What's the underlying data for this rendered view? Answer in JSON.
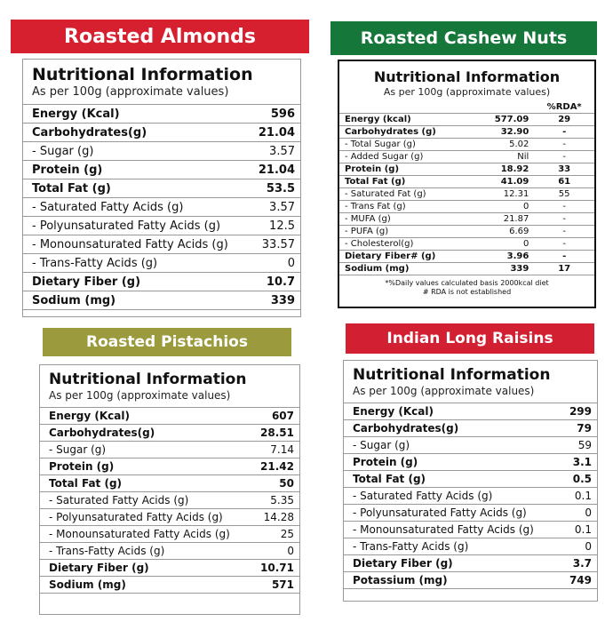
{
  "panels": {
    "almonds": {
      "banner": "Roasted  Almonds",
      "title": "Nutritional Information",
      "subtitle": "As per 100g  (approximate values)",
      "rows": [
        {
          "label": "Energy (Kcal)",
          "value": "596",
          "bold": true
        },
        {
          "label": "Carbohydrates(g)",
          "value": "21.04",
          "bold": true
        },
        {
          "label": "- Sugar (g)",
          "value": "3.57",
          "bold": false
        },
        {
          "label": "Protein (g)",
          "value": "21.04",
          "bold": true
        },
        {
          "label": "Total Fat (g)",
          "value": "53.5",
          "bold": true
        },
        {
          "label": "- Saturated Fatty Acids (g)",
          "value": "3.57",
          "bold": false
        },
        {
          "label": "- Polyunsaturated  Fatty Acids (g)",
          "value": "12.5",
          "bold": false
        },
        {
          "label": "- Monounsaturated Fatty Acids (g)",
          "value": "33.57",
          "bold": false
        },
        {
          "label": "- Trans-Fatty Acids (g)",
          "value": "0",
          "bold": false
        },
        {
          "label": "Dietary Fiber (g)",
          "value": "10.7",
          "bold": true
        },
        {
          "label": "Sodium  (mg)",
          "value": "339",
          "bold": true
        }
      ]
    },
    "cashew": {
      "banner": "Roasted Cashew Nuts",
      "title": "Nutritional Information",
      "subtitle": "As per 100g  (approximate values)",
      "rda_header": "%RDA*",
      "rows": [
        {
          "label": "Energy (kcal)",
          "value": "577.09",
          "rda": "29",
          "bold": true
        },
        {
          "label": "Carbohydrates (g)",
          "value": "32.90",
          "rda": "-",
          "bold": true
        },
        {
          "label": "- Total Sugar (g)",
          "value": "5.02",
          "rda": "-",
          "bold": false
        },
        {
          "label": "- Added Sugar (g)",
          "value": "Nil",
          "rda": "-",
          "bold": false
        },
        {
          "label": "Protein (g)",
          "value": "18.92",
          "rda": "33",
          "bold": true
        },
        {
          "label": "Total Fat (g)",
          "value": "41.09",
          "rda": "61",
          "bold": true
        },
        {
          "label": "- Saturated Fat (g)",
          "value": "12.31",
          "rda": "55",
          "bold": false
        },
        {
          "label": "- Trans Fat (g)",
          "value": "0",
          "rda": "-",
          "bold": false
        },
        {
          "label": "- MUFA (g)",
          "value": "21.87",
          "rda": "-",
          "bold": false
        },
        {
          "label": "- PUFA (g)",
          "value": "6.69",
          "rda": "-",
          "bold": false
        },
        {
          "label": "- Cholesterol(g)",
          "value": "0",
          "rda": "-",
          "bold": false
        },
        {
          "label": "Dietary Fiber# (g)",
          "value": "3.96",
          "rda": "-",
          "bold": true
        },
        {
          "label": "Sodium (mg)",
          "value": "339",
          "rda": "17",
          "bold": true
        }
      ],
      "note1": "*%Daily values calculated basis 2000kcal diet",
      "note2": "# RDA is not established"
    },
    "pistachios": {
      "banner": "Roasted Pistachios",
      "title": "Nutritional Information",
      "subtitle": "As per 100g  (approximate values)",
      "rows": [
        {
          "label": "Energy  (Kcal)",
          "value": "607",
          "bold": true
        },
        {
          "label": "Carbohydrates(g)",
          "value": "28.51",
          "bold": true
        },
        {
          "label": "- Sugar (g)",
          "value": "7.14",
          "bold": false
        },
        {
          "label": "Protein  (g)",
          "value": "21.42",
          "bold": true
        },
        {
          "label": "Total Fat  (g)",
          "value": "50",
          "bold": true
        },
        {
          "label": "- Saturated Fatty Acids  (g)",
          "value": "5.35",
          "bold": false
        },
        {
          "label": "- Polyunsaturated  Fatty Acids (g)",
          "value": "14.28",
          "bold": false
        },
        {
          "label": "- Monounsaturated Fatty Acids (g)",
          "value": "25",
          "bold": false
        },
        {
          "label": "- Trans-Fatty Acids  (g)",
          "value": "0",
          "bold": false
        },
        {
          "label": "Dietary Fiber  (g)",
          "value": "10.71",
          "bold": true
        },
        {
          "label": "Sodium  (mg)",
          "value": "571",
          "bold": true
        }
      ]
    },
    "raisins": {
      "banner": "Indian Long Raisins",
      "title": "Nutritional Information",
      "subtitle": "As per 100g  (approximate values)",
      "rows": [
        {
          "label": "Energy  (Kcal)",
          "value": "299",
          "bold": true
        },
        {
          "label": "Carbohydrates(g)",
          "value": "79",
          "bold": true
        },
        {
          "label": "- Sugar  (g)",
          "value": "59",
          "bold": false
        },
        {
          "label": "Protein  (g)",
          "value": "3.1",
          "bold": true
        },
        {
          "label": "Total Fat (g)",
          "value": "0.5",
          "bold": true
        },
        {
          "label": "- Saturated Fatty Acids  (g)",
          "value": "0.1",
          "bold": false
        },
        {
          "label": "- Polyunsaturated  Fatty Acids (g)",
          "value": "0",
          "bold": false
        },
        {
          "label": "- Monounsaturated Fatty Acids (g)",
          "value": "0.1",
          "bold": false
        },
        {
          "label": "- Trans-Fatty Acids  (g)",
          "value": "0",
          "bold": false
        },
        {
          "label": "Dietary Fiber  (g)",
          "value": "3.7",
          "bold": true
        },
        {
          "label": "Potassium  (mg)",
          "value": "749",
          "bold": true
        }
      ]
    }
  },
  "colors": {
    "almonds_banner": "#d7202f",
    "cashew_banner": "#15773a",
    "pistachios_banner": "#9b9b3e",
    "raisins_banner": "#d31f32"
  }
}
